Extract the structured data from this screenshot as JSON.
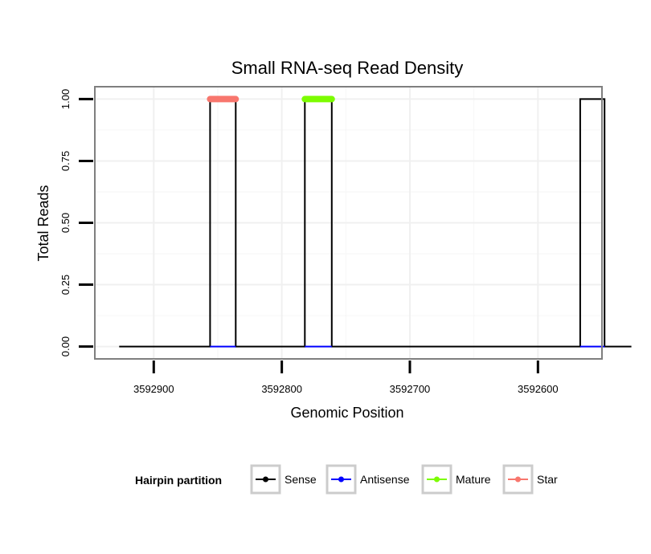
{
  "chart_data": {
    "type": "line",
    "title": "Small RNA-seq Read Density",
    "xlabel": "Genomic Position",
    "ylabel": "Total Reads",
    "x_reversed": true,
    "xlim": [
      3592550,
      3592946
    ],
    "ylim": [
      -0.05,
      1.05
    ],
    "x_ticks": [
      3592900,
      3592800,
      3592700,
      3592600
    ],
    "x_tick_labels": [
      "3592900",
      "3592800",
      "3592700",
      "3592600"
    ],
    "y_ticks": [
      0,
      0.25,
      0.5,
      0.75,
      1
    ],
    "y_tick_labels": [
      "0.00",
      "0.25",
      "0.50",
      "0.75",
      "1.00"
    ],
    "grid": true,
    "legend": {
      "position": "bottom",
      "title": "Hairpin partition",
      "entries": [
        {
          "name": "Sense",
          "color": "#000000"
        },
        {
          "name": "Antisense",
          "color": "#0000ff"
        },
        {
          "name": "Mature",
          "color": "#7cfc00"
        },
        {
          "name": "Star",
          "color": "#f8766d"
        }
      ]
    },
    "series": [
      {
        "name": "Sense",
        "color": "#000000",
        "x": [
          3592927,
          3592856,
          3592856,
          3592836,
          3592836,
          3592782,
          3592782,
          3592761,
          3592761,
          3592567,
          3592567,
          3592548,
          3592548,
          3592527
        ],
        "y": [
          0,
          0,
          1,
          1,
          0,
          0,
          1,
          1,
          0,
          0,
          1,
          1,
          0,
          0
        ]
      },
      {
        "name": "Antisense",
        "color": "#0000ff",
        "segments": [
          [
            3592856,
            3592836
          ],
          [
            3592782,
            3592761
          ],
          [
            3592567,
            3592548
          ]
        ],
        "y": 0
      },
      {
        "name": "Mature",
        "color": "#7cfc00",
        "segments": [
          [
            3592782,
            3592761
          ]
        ],
        "y": 1
      },
      {
        "name": "Star",
        "color": "#f8766d",
        "segments": [
          [
            3592856,
            3592836
          ]
        ],
        "y": 1
      }
    ]
  }
}
